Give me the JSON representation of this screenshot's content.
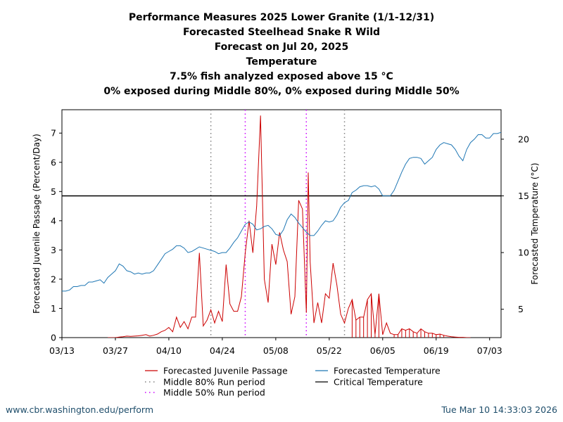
{
  "chart_data": {
    "type": "line",
    "title_lines": [
      "Performance Measures 2025 Lower Granite (1/1-12/31)",
      "Forecasted Steelhead Snake R Wild",
      "Forecast on Jul 20, 2025",
      "Temperature",
      "7.5% fish analyzed exposed above 15 °C",
      "0% exposed during Middle 80%, 0% exposed during Middle 50%"
    ],
    "ylabel_left": "Forecasted Juvenile Passage (Percent/Day)",
    "ylabel_right": "Forecasted Temperature (°C)",
    "x_range_days": [
      0,
      115
    ],
    "x_ticks": [
      {
        "day": 0,
        "label": "03/13"
      },
      {
        "day": 14,
        "label": "03/27"
      },
      {
        "day": 28,
        "label": "04/10"
      },
      {
        "day": 42,
        "label": "04/24"
      },
      {
        "day": 56,
        "label": "05/08"
      },
      {
        "day": 70,
        "label": "05/22"
      },
      {
        "day": 84,
        "label": "06/05"
      },
      {
        "day": 98,
        "label": "06/19"
      },
      {
        "day": 112,
        "label": "07/03"
      }
    ],
    "ylim_left": [
      0,
      7.8
    ],
    "yticks_left": [
      0,
      1,
      2,
      3,
      4,
      5,
      6,
      7
    ],
    "ylim_right": [
      2.5,
      22.6
    ],
    "yticks_right": [
      5,
      10,
      15,
      20
    ],
    "critical_temperature": 15,
    "middle80_days": [
      39,
      74
    ],
    "middle50_days": [
      48,
      64
    ],
    "series": [
      {
        "name": "Forecasted Juvenile Passage",
        "axis": "left",
        "color": "#cc0000",
        "points": [
          [
            12,
            0
          ],
          [
            13,
            0
          ],
          [
            14,
            0
          ],
          [
            15,
            0.02
          ],
          [
            16,
            0.03
          ],
          [
            17,
            0.05
          ],
          [
            18,
            0.04
          ],
          [
            19,
            0.05
          ],
          [
            20,
            0.06
          ],
          [
            21,
            0.08
          ],
          [
            22,
            0.1
          ],
          [
            23,
            0.05
          ],
          [
            24,
            0.08
          ],
          [
            25,
            0.12
          ],
          [
            26,
            0.2
          ],
          [
            27,
            0.25
          ],
          [
            28,
            0.35
          ],
          [
            29,
            0.2
          ],
          [
            30,
            0.7
          ],
          [
            31,
            0.35
          ],
          [
            32,
            0.55
          ],
          [
            33,
            0.3
          ],
          [
            34,
            0.7
          ],
          [
            35,
            0.7
          ],
          [
            36,
            2.9
          ],
          [
            37,
            0.4
          ],
          [
            38,
            0.6
          ],
          [
            39,
            0.95
          ],
          [
            40,
            0.5
          ],
          [
            41,
            0.9
          ],
          [
            42,
            0.55
          ],
          [
            43,
            2.5
          ],
          [
            44,
            1.15
          ],
          [
            45,
            0.9
          ],
          [
            46,
            0.9
          ],
          [
            47,
            1.4
          ],
          [
            48,
            2.9
          ],
          [
            49,
            4.0
          ],
          [
            50,
            2.9
          ],
          [
            51,
            4.5
          ],
          [
            52,
            7.6
          ],
          [
            53,
            2.0
          ],
          [
            54,
            1.2
          ],
          [
            55,
            3.2
          ],
          [
            56,
            2.5
          ],
          [
            57,
            3.6
          ],
          [
            58,
            3.0
          ],
          [
            59,
            2.6
          ],
          [
            60,
            0.8
          ],
          [
            61,
            1.4
          ],
          [
            62,
            4.7
          ],
          [
            63,
            4.4
          ],
          [
            64,
            0.85
          ],
          [
            64.5,
            5.65
          ],
          [
            65,
            2.6
          ],
          [
            66,
            0.5
          ],
          [
            67,
            1.2
          ],
          [
            68,
            0.5
          ],
          [
            69,
            1.5
          ],
          [
            70,
            1.35
          ],
          [
            71,
            2.55
          ],
          [
            72,
            1.8
          ],
          [
            73,
            0.8
          ],
          [
            74,
            0.5
          ],
          [
            75,
            1.0
          ],
          [
            76,
            1.3
          ],
          [
            77,
            0.6
          ],
          [
            78,
            0.7
          ],
          [
            79,
            0.7
          ],
          [
            80,
            1.3
          ],
          [
            81,
            1.5
          ],
          [
            82,
            0.1
          ],
          [
            83,
            1.5
          ],
          [
            84,
            0.1
          ],
          [
            85,
            0.5
          ],
          [
            86,
            0.15
          ],
          [
            87,
            0.1
          ],
          [
            88,
            0.1
          ],
          [
            89,
            0.3
          ],
          [
            90,
            0.25
          ],
          [
            91,
            0.3
          ],
          [
            92,
            0.2
          ],
          [
            93,
            0.15
          ],
          [
            94,
            0.3
          ],
          [
            95,
            0.2
          ],
          [
            96,
            0.15
          ],
          [
            97,
            0.15
          ],
          [
            98,
            0.1
          ],
          [
            99,
            0.12
          ],
          [
            100,
            0.08
          ],
          [
            101,
            0.05
          ],
          [
            102,
            0.03
          ],
          [
            103,
            0.02
          ],
          [
            104,
            0.01
          ],
          [
            105,
            0.01
          ],
          [
            106,
            0
          ],
          [
            107,
            0
          ]
        ]
      },
      {
        "name": "Forecasted Temperature",
        "axis": "right",
        "color": "#1f77b4",
        "points": [
          [
            0,
            6.6
          ],
          [
            1,
            6.6
          ],
          [
            2,
            6.7
          ],
          [
            3,
            7.0
          ],
          [
            4,
            7.0
          ],
          [
            5,
            7.1
          ],
          [
            6,
            7.1
          ],
          [
            7,
            7.4
          ],
          [
            8,
            7.4
          ],
          [
            9,
            7.5
          ],
          [
            10,
            7.6
          ],
          [
            11,
            7.3
          ],
          [
            12,
            7.8
          ],
          [
            13,
            8.1
          ],
          [
            14,
            8.4
          ],
          [
            15,
            9.0
          ],
          [
            16,
            8.8
          ],
          [
            17,
            8.4
          ],
          [
            18,
            8.3
          ],
          [
            19,
            8.1
          ],
          [
            20,
            8.2
          ],
          [
            21,
            8.1
          ],
          [
            22,
            8.2
          ],
          [
            23,
            8.2
          ],
          [
            24,
            8.4
          ],
          [
            25,
            8.9
          ],
          [
            26,
            9.4
          ],
          [
            27,
            9.9
          ],
          [
            28,
            10.1
          ],
          [
            29,
            10.3
          ],
          [
            30,
            10.6
          ],
          [
            31,
            10.6
          ],
          [
            32,
            10.4
          ],
          [
            33,
            10.0
          ],
          [
            34,
            10.1
          ],
          [
            35,
            10.3
          ],
          [
            36,
            10.5
          ],
          [
            37,
            10.4
          ],
          [
            38,
            10.3
          ],
          [
            39,
            10.2
          ],
          [
            40,
            10.1
          ],
          [
            41,
            9.9
          ],
          [
            42,
            10.0
          ],
          [
            43,
            10.0
          ],
          [
            44,
            10.4
          ],
          [
            45,
            10.9
          ],
          [
            46,
            11.3
          ],
          [
            47,
            11.9
          ],
          [
            48,
            12.5
          ],
          [
            49,
            12.7
          ],
          [
            50,
            12.5
          ],
          [
            51,
            12.0
          ],
          [
            52,
            12.1
          ],
          [
            53,
            12.3
          ],
          [
            54,
            12.4
          ],
          [
            55,
            12.1
          ],
          [
            56,
            11.6
          ],
          [
            57,
            11.5
          ],
          [
            58,
            12.0
          ],
          [
            59,
            12.9
          ],
          [
            60,
            13.4
          ],
          [
            61,
            13.1
          ],
          [
            62,
            12.6
          ],
          [
            63,
            12.2
          ],
          [
            64,
            11.8
          ],
          [
            65,
            11.5
          ],
          [
            66,
            11.5
          ],
          [
            67,
            11.9
          ],
          [
            68,
            12.4
          ],
          [
            69,
            12.8
          ],
          [
            70,
            12.7
          ],
          [
            71,
            12.8
          ],
          [
            72,
            13.3
          ],
          [
            73,
            14.0
          ],
          [
            74,
            14.4
          ],
          [
            75,
            14.6
          ],
          [
            76,
            15.3
          ],
          [
            77,
            15.5
          ],
          [
            78,
            15.8
          ],
          [
            79,
            15.9
          ],
          [
            80,
            15.9
          ],
          [
            81,
            15.8
          ],
          [
            82,
            15.9
          ],
          [
            83,
            15.6
          ],
          [
            84,
            15.0
          ],
          [
            85,
            15.0
          ],
          [
            86,
            15.0
          ],
          [
            87,
            15.5
          ],
          [
            88,
            16.3
          ],
          [
            89,
            17.1
          ],
          [
            90,
            17.8
          ],
          [
            91,
            18.3
          ],
          [
            92,
            18.4
          ],
          [
            93,
            18.4
          ],
          [
            94,
            18.3
          ],
          [
            95,
            17.8
          ],
          [
            96,
            18.1
          ],
          [
            97,
            18.4
          ],
          [
            98,
            19.1
          ],
          [
            99,
            19.5
          ],
          [
            100,
            19.7
          ],
          [
            101,
            19.6
          ],
          [
            102,
            19.5
          ],
          [
            103,
            19.1
          ],
          [
            104,
            18.5
          ],
          [
            105,
            18.1
          ],
          [
            106,
            19.1
          ],
          [
            107,
            19.7
          ],
          [
            108,
            20.0
          ],
          [
            109,
            20.4
          ],
          [
            110,
            20.4
          ],
          [
            111,
            20.1
          ],
          [
            112,
            20.1
          ],
          [
            113,
            20.5
          ],
          [
            114,
            20.5
          ],
          [
            115,
            20.6
          ]
        ]
      }
    ],
    "legend": [
      {
        "label": "Forecasted Juvenile Passage",
        "style": "line",
        "color": "#cc0000"
      },
      {
        "label": "Forecasted Temperature",
        "style": "line",
        "color": "#1f77b4"
      },
      {
        "label": "Middle 80% Run period",
        "style": "dotted",
        "color": "#808080"
      },
      {
        "label": "Critical Temperature",
        "style": "line",
        "color": "#000000"
      },
      {
        "label": "Middle 50% Run period",
        "style": "dotted",
        "color": "#cc00ff"
      }
    ],
    "colors": {
      "passage": "#cc0000",
      "temperature": "#1f77b4",
      "critical": "#000000",
      "middle80": "#808080",
      "middle50": "#cc00ff"
    }
  },
  "footer": {
    "left": "www.cbr.washington.edu/perform",
    "right": "Tue Mar 10 14:33:03 2026"
  }
}
